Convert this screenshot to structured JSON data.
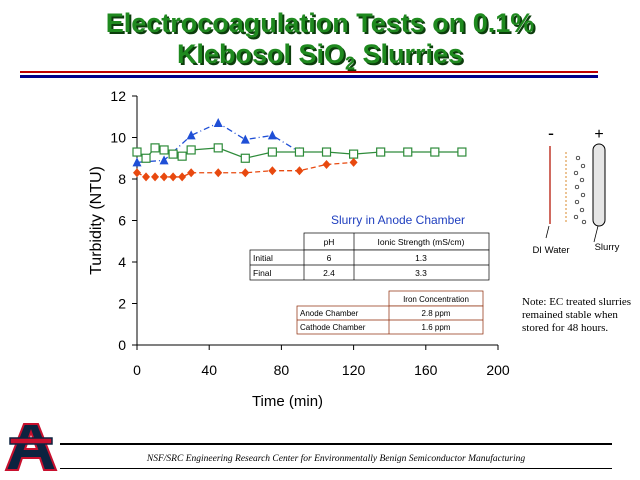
{
  "slide": {
    "title_line1": "Electrocoagulation Tests on 0.1%",
    "title_line2_a": "Klebosol SiO",
    "title_line2_sub": "2",
    "title_line2_b": " Slurries",
    "footer": "NSF/SRC Engineering Research Center for Environmentally Benign Semiconductor Manufacturing",
    "note": "Note: EC treated slurries remained stable when stored for 48 hours."
  },
  "diagram": {
    "minus": "-",
    "plus": "+",
    "di_water": "DI Water",
    "slurry": "Slurry"
  },
  "chart_data": {
    "type": "line",
    "xlabel": "Time (min)",
    "ylabel": "Turbidity (NTU)",
    "xlim": [
      0,
      200
    ],
    "ylim": [
      0,
      12
    ],
    "xticks": [
      0,
      40,
      80,
      120,
      160,
      200
    ],
    "yticks": [
      0,
      2,
      4,
      6,
      8,
      10,
      12
    ],
    "annotation": "Slurry in Anode Chamber",
    "colors": {
      "blue": "#1f4fd6",
      "green": "#2e8b3a",
      "orange": "#e8490f"
    },
    "series": [
      {
        "marker": "triangle",
        "color": "#1f4fd6",
        "style": "dash-dot",
        "x": [
          0,
          15,
          30,
          45,
          60,
          75,
          90
        ],
        "y": [
          8.8,
          8.9,
          10.1,
          10.7,
          9.9,
          10.1,
          9.3
        ]
      },
      {
        "marker": "square",
        "color": "#2e8b3a",
        "style": "solid",
        "x": [
          0,
          5,
          10,
          15,
          20,
          25,
          30,
          45,
          60,
          75,
          90,
          105,
          120,
          135,
          150,
          165,
          180
        ],
        "y": [
          9.3,
          9.0,
          9.5,
          9.4,
          9.2,
          9.1,
          9.4,
          9.5,
          9.0,
          9.3,
          9.3,
          9.3,
          9.2,
          9.3,
          9.3,
          9.3,
          9.3
        ]
      },
      {
        "marker": "diamond",
        "color": "#e8490f",
        "style": "dashed",
        "x": [
          0,
          5,
          10,
          15,
          20,
          25,
          30,
          45,
          60,
          75,
          90,
          105,
          120
        ],
        "y": [
          8.3,
          8.1,
          8.1,
          8.1,
          8.1,
          8.1,
          8.3,
          8.3,
          8.3,
          8.4,
          8.4,
          8.7,
          8.8
        ]
      }
    ],
    "table_ph": {
      "headers": [
        "",
        "pH",
        "Ionic Strength (mS/cm)"
      ],
      "rows": [
        [
          "Initial",
          "6",
          "1.3"
        ],
        [
          "Final",
          "2.4",
          "3.3"
        ]
      ]
    },
    "table_iron": {
      "headers": [
        "",
        "Iron Concentration"
      ],
      "rows": [
        [
          "Anode Chamber",
          "2.8 ppm"
        ],
        [
          "Cathode Chamber",
          "1.6 ppm"
        ]
      ]
    }
  }
}
